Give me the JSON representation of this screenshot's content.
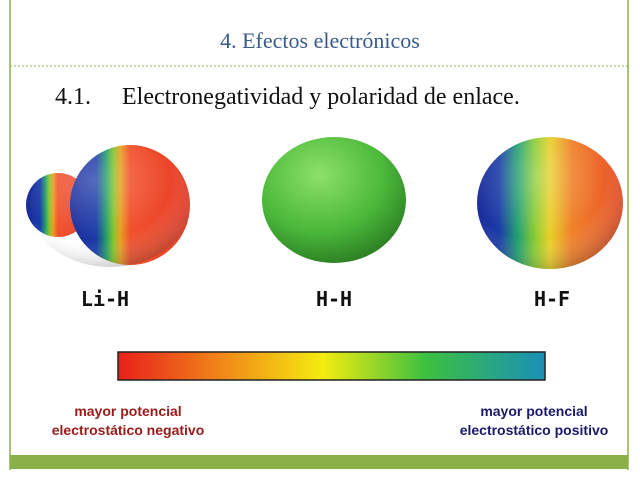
{
  "header": {
    "title": "4. Efectos electrónicos"
  },
  "section": {
    "number": "4.1.",
    "title": "Electronegatividad y polaridad de enlace."
  },
  "molecules": [
    {
      "label": "Li-H"
    },
    {
      "label": "H-H"
    },
    {
      "label": "H-F"
    }
  ],
  "scale": {
    "negative": [
      "mayor potencial",
      "electrostático negativo"
    ],
    "positive": [
      "mayor potencial",
      "electrostático positivo"
    ]
  }
}
